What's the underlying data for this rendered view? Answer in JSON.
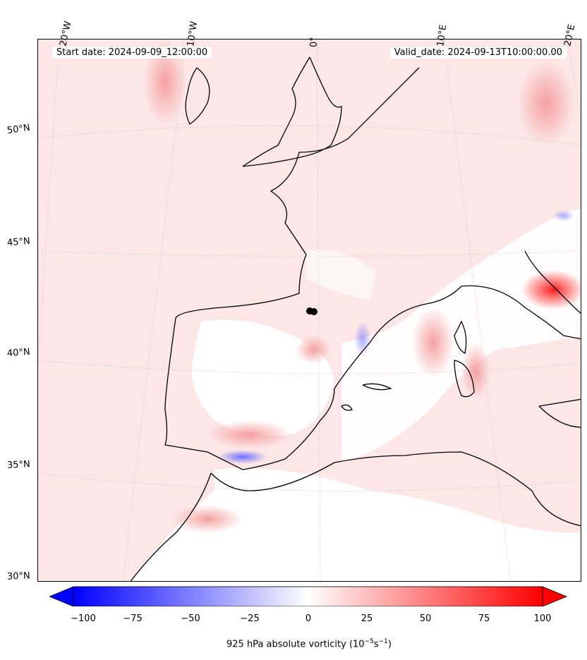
{
  "map": {
    "start_label": "Start date: 2024-09-09_12:00:00",
    "valid_label": "Valid_date: 2024-09-13T10:00:00.00",
    "lon_labels": [
      "20°W",
      "10°W",
      "0°",
      "10°E",
      "20°E"
    ],
    "lat_labels": [
      "50°N",
      "45°N",
      "40°N",
      "35°N",
      "30°N"
    ],
    "field": "925 hPa absolute vorticity",
    "marker": "storm-center-dot"
  },
  "colorbar": {
    "ticks": [
      "−100",
      "−75",
      "−50",
      "−25",
      "0",
      "25",
      "50",
      "75",
      "100"
    ],
    "title": "925 hPa absolute vorticity (10",
    "title_exp1": "−5",
    "title_mid": "s",
    "title_exp2": "−1",
    "title_end": ")",
    "colors": {
      "neg": "#0000ff",
      "zero": "#ffffff",
      "pos": "#ff0000"
    }
  }
}
